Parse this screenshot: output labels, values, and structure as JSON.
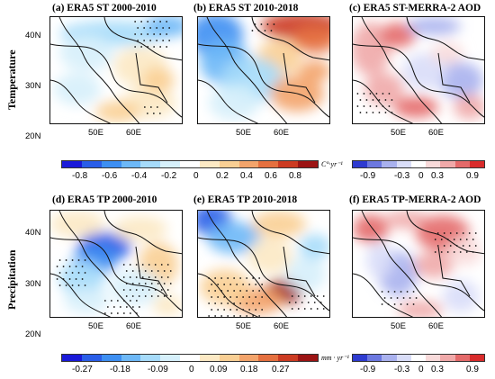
{
  "row_labels": {
    "temperature": "Temperature",
    "precipitation": "Precipitation"
  },
  "panels": [
    {
      "title": "(a) ERA5 ST 2000-2010"
    },
    {
      "title": "(b) ERA5 ST 2010-2018"
    },
    {
      "title": "(c) ERA5 ST-MERRA-2 AOD"
    },
    {
      "title": "(d) ERA5 TP 2000-2010"
    },
    {
      "title": "(e) ERA5 TP 2010-2018"
    },
    {
      "title": "(f) ERA5 TP-MERRA-2 AOD"
    }
  ],
  "lat_ticks": [
    "40N",
    "30N",
    "20N"
  ],
  "lon_ticks": [
    "50E",
    "60E"
  ],
  "colorbars": {
    "st_trend": {
      "labels": [
        "-0.8",
        "-0.6",
        "-0.4",
        "-0.2",
        "0",
        "0.2",
        "0.4",
        "0.6",
        "0.8"
      ],
      "unit": "C°·yr⁻¹"
    },
    "st_corr": {
      "labels": [
        "-0.9",
        "-0.3",
        "0",
        "0.3",
        "0.9"
      ]
    },
    "tp_trend": {
      "labels": [
        "-0.27",
        "-0.18",
        "-0.09",
        "0",
        "0.09",
        "0.18",
        "0.27"
      ],
      "unit": "mm · yr⁻¹"
    },
    "tp_corr": {
      "labels": [
        "-0.9",
        "-0.3",
        "0",
        "0.3",
        "0.9"
      ]
    }
  },
  "colors": {
    "diverging_blue_red": [
      "#1a1ad9",
      "#2a5ee8",
      "#3d8ff2",
      "#6db8f7",
      "#a6dbfa",
      "#d6f0fb",
      "#ffffff",
      "#fce9c4",
      "#f9cf94",
      "#f3a46b",
      "#e5703f",
      "#cc3b22",
      "#9c1414"
    ],
    "correlation": [
      "#2e3bd0",
      "#6c78e0",
      "#a9b1ee",
      "#d9ddf8",
      "#ffffff",
      "#f8dada",
      "#f0a9a9",
      "#e46a6a",
      "#d92b2b"
    ]
  }
}
